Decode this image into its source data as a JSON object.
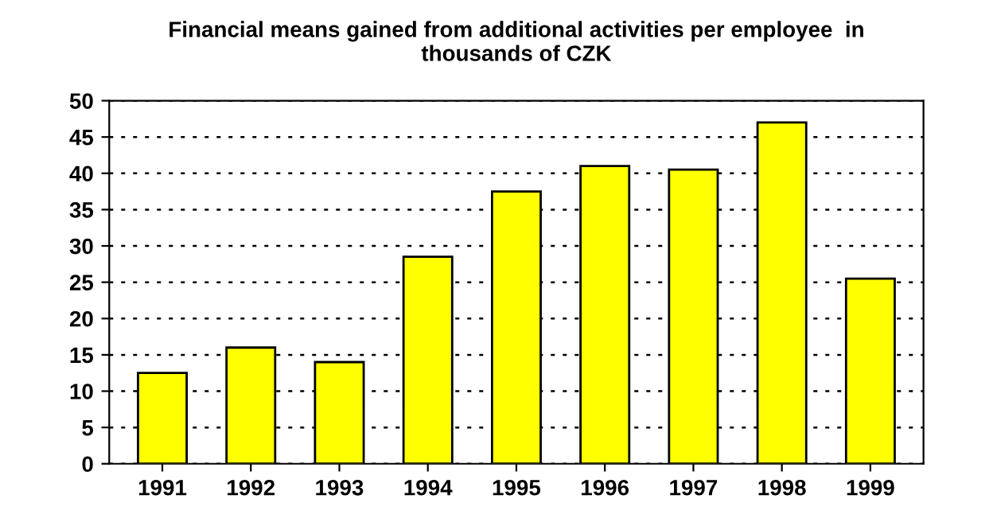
{
  "chart_data": {
    "type": "bar",
    "title": "Financial means gained from additional activities per employee  in\nthousands of CZK",
    "categories": [
      "1991",
      "1992",
      "1993",
      "1994",
      "1995",
      "1996",
      "1997",
      "1998",
      "1999"
    ],
    "values": [
      12.5,
      16,
      14,
      28.5,
      37.5,
      41,
      40.5,
      47,
      25.5
    ],
    "color": "#ffff00",
    "ylim": [
      0,
      50
    ],
    "yticks": [
      0,
      5,
      10,
      15,
      20,
      25,
      30,
      35,
      40,
      45,
      50
    ],
    "grid": "y"
  }
}
